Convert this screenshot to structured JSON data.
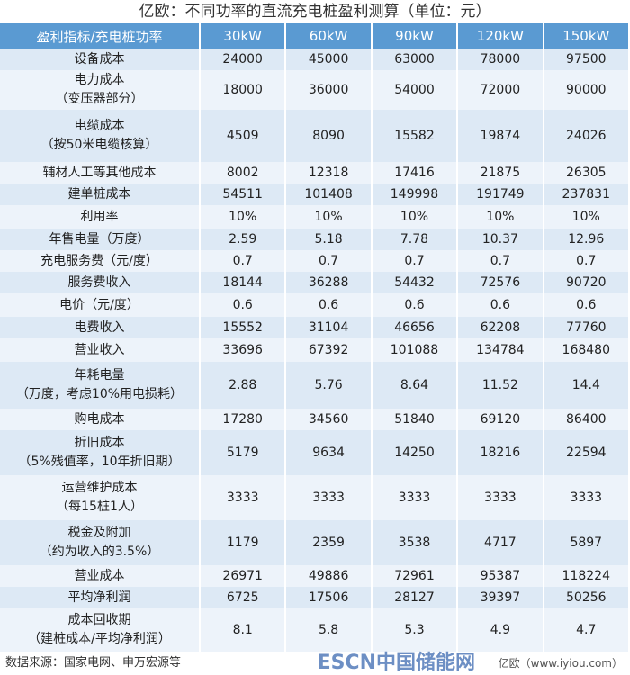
{
  "title": "亿欧：不同功率的直流充电桩盈利测算（单位：元）",
  "headers": [
    "盈利指标/充电桩功率",
    "30kW",
    "60kW",
    "90kW",
    "120kW",
    "150kW"
  ],
  "rows": [
    {
      "label": [
        "设备成本"
      ],
      "values": [
        "24000",
        "45000",
        "63000",
        "78000",
        "97500"
      ]
    },
    {
      "label": [
        "电力成本",
        "（变压器部分）"
      ],
      "values": [
        "18000",
        "36000",
        "54000",
        "72000",
        "90000"
      ]
    },
    {
      "label": [
        "电缆成本",
        "（按50米电缆核算）"
      ],
      "values": [
        "4509",
        "8090",
        "15582",
        "19874",
        "24026"
      ]
    },
    {
      "label": [
        "辅材人工等其他成本"
      ],
      "values": [
        "8002",
        "12318",
        "17416",
        "21875",
        "26305"
      ]
    },
    {
      "label": [
        "建单桩成本"
      ],
      "values": [
        "54511",
        "101408",
        "149998",
        "191749",
        "237831"
      ]
    },
    {
      "label": [
        "利用率"
      ],
      "values": [
        "10%",
        "10%",
        "10%",
        "10%",
        "10%"
      ]
    },
    {
      "label": [
        "年售电量（万度）"
      ],
      "values": [
        "2.59",
        "5.18",
        "7.78",
        "10.37",
        "12.96"
      ]
    },
    {
      "label": [
        "充电服务费（元/度）"
      ],
      "values": [
        "0.7",
        "0.7",
        "0.7",
        "0.7",
        "0.7"
      ]
    },
    {
      "label": [
        "服务费收入"
      ],
      "values": [
        "18144",
        "36288",
        "54432",
        "72576",
        "90720"
      ]
    },
    {
      "label": [
        "电价（元/度）"
      ],
      "values": [
        "0.6",
        "0.6",
        "0.6",
        "0.6",
        "0.6"
      ]
    },
    {
      "label": [
        "电费收入"
      ],
      "values": [
        "15552",
        "31104",
        "46656",
        "62208",
        "77760"
      ]
    },
    {
      "label": [
        "营业收入"
      ],
      "values": [
        "33696",
        "67392",
        "101088",
        "134784",
        "168480"
      ]
    },
    {
      "label": [
        "年耗电量",
        "（万度，考虑10%用电损耗）"
      ],
      "values": [
        "2.88",
        "5.76",
        "8.64",
        "11.52",
        "14.4"
      ]
    },
    {
      "label": [
        "购电成本"
      ],
      "values": [
        "17280",
        "34560",
        "51840",
        "69120",
        "86400"
      ]
    },
    {
      "label": [
        "折旧成本",
        "（5%残值率，10年折旧期）"
      ],
      "values": [
        "5179",
        "9634",
        "14250",
        "18216",
        "22594"
      ]
    },
    {
      "label": [
        "运营维护成本",
        "（每15桩1人）"
      ],
      "values": [
        "3333",
        "3333",
        "3333",
        "3333",
        "3333"
      ]
    },
    {
      "label": [
        "税金及附加",
        "（约为收入的3.5%）"
      ],
      "values": [
        "1179",
        "2359",
        "3538",
        "4717",
        "5897"
      ]
    },
    {
      "label": [
        "营业成本"
      ],
      "values": [
        "26971",
        "49886",
        "72961",
        "95387",
        "118224"
      ]
    },
    {
      "label": [
        "平均净利润"
      ],
      "values": [
        "6725",
        "17506",
        "28127",
        "39397",
        "50256"
      ]
    },
    {
      "label": [
        "成本回收期",
        "（建桩成本/平均净利润）"
      ],
      "values": [
        "8.1",
        "5.8",
        "5.3",
        "4.9",
        "4.7"
      ]
    }
  ],
  "footer": {
    "source": "数据来源：国家电网、申万宏源等",
    "watermark": "ESCN中国储能网",
    "credit": "亿欧（www.iyiou.com）"
  }
}
